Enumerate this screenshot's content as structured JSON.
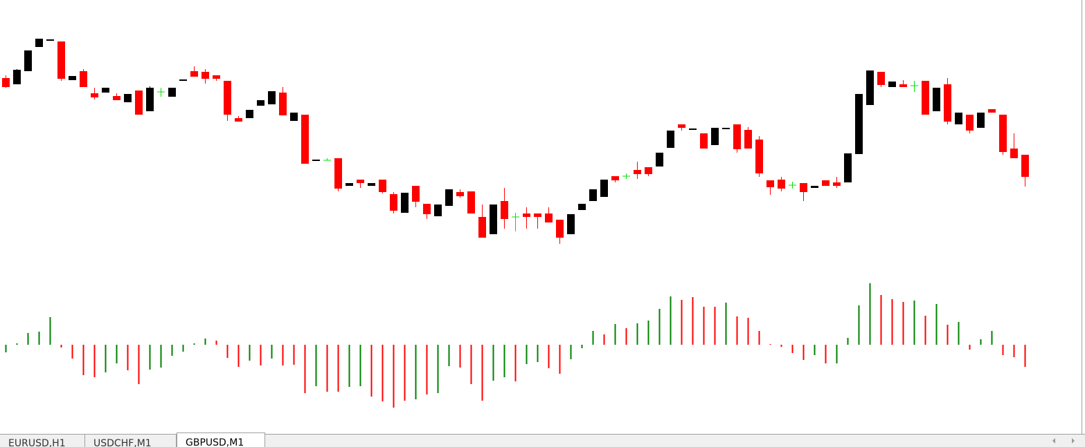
{
  "chart_data": [
    {
      "type": "candlestick",
      "ylim": [
        0,
        400
      ],
      "bull_color": "#000000",
      "bear_color": "#ff0000",
      "doji_color": "#00e000",
      "open": [
        287,
        278,
        297,
        332,
        341,
        340,
        284,
        297,
        265,
        266,
        261,
        252,
        269,
        239,
        267,
        260,
        283,
        297,
        296,
        291,
        283,
        229,
        229,
        247,
        249,
        266,
        225,
        234,
        167,
        168,
        171,
        131,
        140,
        131,
        140,
        119,
        92,
        131,
        105,
        87,
        102,
        122,
        123,
        86,
        61,
        109,
        86,
        91,
        91,
        91,
        82,
        61,
        96,
        109,
        115,
        145,
        145,
        154,
        158,
        159,
        186,
        220,
        212,
        207,
        190,
        213,
        220,
        212,
        198,
        139,
        140,
        132,
        135,
        128,
        139,
        136,
        136,
        177,
        248,
        296,
        274,
        278,
        276,
        283,
        239,
        278,
        220,
        234,
        215,
        242,
        234,
        185,
        176
      ],
      "high": [
        291,
        300,
        327,
        344,
        343,
        340,
        290,
        300,
        273,
        273,
        265,
        264,
        269,
        275,
        273,
        273,
        285,
        304,
        300,
        291,
        283,
        232,
        241,
        255,
        268,
        274,
        237,
        234,
        169,
        171,
        171,
        135,
        140,
        135,
        140,
        122,
        121,
        131,
        105,
        104,
        126,
        126,
        123,
        104,
        104,
        128,
        92,
        100,
        91,
        100,
        82,
        90,
        105,
        126,
        140,
        145,
        149,
        166,
        158,
        179,
        211,
        220,
        214,
        207,
        215,
        215,
        220,
        216,
        203,
        139,
        144,
        137,
        135,
        131,
        139,
        144,
        178,
        264,
        298,
        296,
        282,
        284,
        283,
        283,
        273,
        287,
        237,
        234,
        237,
        242,
        234,
        207,
        176
      ],
      "low": [
        273,
        278,
        297,
        332,
        341,
        283,
        284,
        274,
        256,
        266,
        255,
        252,
        234,
        239,
        260,
        260,
        283,
        289,
        279,
        283,
        225,
        224,
        229,
        247,
        249,
        233,
        225,
        163,
        167,
        168,
        123,
        131,
        128,
        131,
        120,
        91,
        92,
        100,
        83,
        87,
        102,
        114,
        91,
        56,
        61,
        69,
        65,
        69,
        69,
        78,
        47,
        61,
        96,
        109,
        115,
        136,
        141,
        141,
        145,
        159,
        186,
        211,
        212,
        185,
        190,
        213,
        179,
        185,
        144,
        118,
        123,
        127,
        109,
        128,
        131,
        128,
        136,
        177,
        248,
        274,
        274,
        274,
        267,
        234,
        239,
        220,
        220,
        207,
        215,
        237,
        176,
        171,
        130
      ],
      "close": [
        274,
        299,
        327,
        344,
        343,
        286,
        290,
        274,
        259,
        273,
        255,
        264,
        234,
        273,
        267,
        273,
        285,
        289,
        286,
        286,
        234,
        224,
        241,
        255,
        268,
        233,
        237,
        163,
        169,
        168,
        127,
        135,
        135,
        135,
        122,
        95,
        121,
        108,
        90,
        104,
        126,
        116,
        91,
        56,
        104,
        83,
        86,
        86,
        86,
        78,
        56,
        90,
        105,
        126,
        140,
        139,
        145,
        148,
        148,
        179,
        211,
        215,
        214,
        185,
        215,
        215,
        184,
        185,
        149,
        129,
        127,
        132,
        122,
        131,
        131,
        131,
        178,
        264,
        298,
        277,
        282,
        274,
        276,
        234,
        273,
        224,
        237,
        211,
        237,
        237,
        180,
        171,
        144
      ]
    },
    {
      "type": "bar",
      "ylim": [
        -129,
        129
      ],
      "values": [
        -11,
        2,
        17,
        19,
        40,
        -4,
        -20,
        -44,
        -47,
        -40,
        -27,
        -37,
        -57,
        -36,
        -33,
        -16,
        -10,
        2,
        9,
        6,
        -19,
        -32,
        -23,
        -30,
        -20,
        -30,
        -29,
        -70,
        -60,
        -68,
        -68,
        -61,
        -60,
        -75,
        -82,
        -91,
        -81,
        -79,
        -72,
        -70,
        -31,
        -33,
        -57,
        -81,
        -52,
        -47,
        -53,
        -28,
        -25,
        -34,
        -42,
        -21,
        -5,
        20,
        15,
        30,
        24,
        31,
        35,
        52,
        70,
        65,
        69,
        55,
        55,
        61,
        41,
        39,
        20,
        1,
        -3,
        -12,
        -22,
        -15,
        -27,
        -27,
        10,
        57,
        89,
        72,
        66,
        62,
        64,
        42,
        59,
        29,
        33,
        -7,
        8,
        20,
        -15,
        -18,
        -32
      ],
      "colors": [
        "#008000",
        "#008000",
        "#008000",
        "#008000",
        "#008000",
        "#ff0000",
        "#ff0000",
        "#ff0000",
        "#ff0000",
        "#008000",
        "#008000",
        "#ff0000",
        "#ff0000",
        "#008000",
        "#008000",
        "#008000",
        "#008000",
        "#008000",
        "#008000",
        "#ff0000",
        "#ff0000",
        "#ff0000",
        "#008000",
        "#ff0000",
        "#008000",
        "#ff0000",
        "#ff0000",
        "#ff0000",
        "#008000",
        "#ff0000",
        "#ff0000",
        "#008000",
        "#008000",
        "#ff0000",
        "#ff0000",
        "#ff0000",
        "#ff0000",
        "#008000",
        "#ff0000",
        "#008000",
        "#008000",
        "#ff0000",
        "#ff0000",
        "#ff0000",
        "#008000",
        "#008000",
        "#ff0000",
        "#008000",
        "#008000",
        "#ff0000",
        "#ff0000",
        "#008000",
        "#008000",
        "#008000",
        "#ff0000",
        "#008000",
        "#ff0000",
        "#008000",
        "#008000",
        "#008000",
        "#008000",
        "#ff0000",
        "#ff0000",
        "#ff0000",
        "#ff0000",
        "#008000",
        "#ff0000",
        "#ff0000",
        "#ff0000",
        "#ff0000",
        "#ff0000",
        "#ff0000",
        "#ff0000",
        "#008000",
        "#ff0000",
        "#008000",
        "#008000",
        "#008000",
        "#008000",
        "#ff0000",
        "#ff0000",
        "#ff0000",
        "#008000",
        "#ff0000",
        "#008000",
        "#ff0000",
        "#008000",
        "#ff0000",
        "#008000",
        "#008000",
        "#ff0000",
        "#ff0000",
        "#ff0000"
      ]
    }
  ],
  "tabs": [
    "EURUSD,H1",
    "USDCHF,M1",
    "GBPUSD,M1"
  ]
}
